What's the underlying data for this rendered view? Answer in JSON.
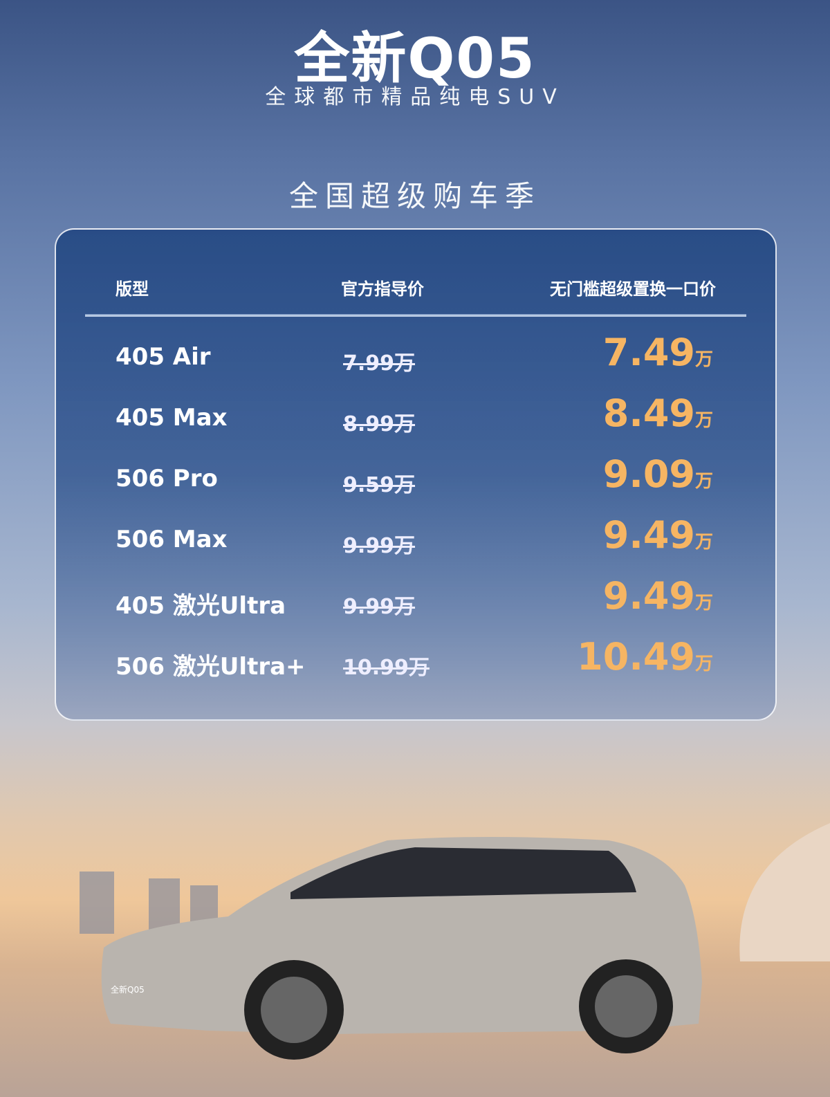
{
  "header": {
    "title": "全新Q05",
    "subtitle": "全球都市精品纯电SUV",
    "promo": "全国超级购车季"
  },
  "table": {
    "columns": [
      "版型",
      "官方指导价",
      "无门槛超级置换一口价"
    ],
    "unit": "万",
    "rows": [
      {
        "model": "405 Air",
        "original": "7.99万",
        "price": "7.49"
      },
      {
        "model": "405 Max",
        "original": "8.99万",
        "price": "8.49"
      },
      {
        "model": "506 Pro",
        "original": "9.59万",
        "price": "9.09"
      },
      {
        "model": "506 Max",
        "original": "9.99万",
        "price": "9.49"
      },
      {
        "model": "405 激光Ultra",
        "original": "9.99万",
        "price": "9.49"
      },
      {
        "model": "506 激光Ultra+",
        "original": "10.99万",
        "price": "10.49"
      }
    ]
  },
  "car_badge": "全新Q05",
  "colors": {
    "accent_price": "#f6b563",
    "card": "#264a84"
  }
}
